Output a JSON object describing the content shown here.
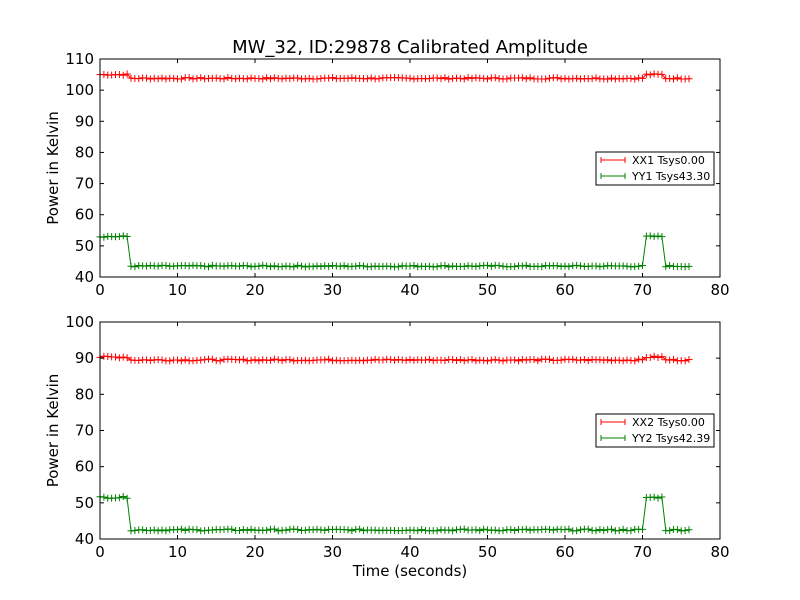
{
  "figure": {
    "title": "MW_32, ID:29878 Calibrated Amplitude"
  },
  "chart_data": [
    {
      "type": "line",
      "title": "MW_32, ID:29878 Calibrated Amplitude",
      "xlabel": "",
      "ylabel": "Power in Kelvin",
      "xlim": [
        0,
        80
      ],
      "ylim": [
        40,
        110
      ],
      "xticks": [
        "0",
        "10",
        "20",
        "30",
        "40",
        "50",
        "60",
        "70",
        "80"
      ],
      "yticks": [
        "40",
        "50",
        "60",
        "70",
        "80",
        "90",
        "100",
        "110"
      ],
      "grid": false,
      "legend_position": "center-right",
      "series": [
        {
          "name": "XX1 Tsys0.00",
          "color": "#ff0000",
          "marker": "plus",
          "x": [
            0,
            3.5,
            4,
            70,
            70.5,
            72.5,
            73,
            76
          ],
          "y": [
            105,
            105,
            103.8,
            103.8,
            105,
            105,
            103.8,
            103.8
          ]
        },
        {
          "name": "YY1 Tsys43.30",
          "color": "#008000",
          "marker": "plus",
          "x": [
            0,
            3.5,
            4,
            70,
            70.5,
            72.5,
            73,
            76
          ],
          "y": [
            53,
            53,
            43.5,
            43.5,
            53,
            53,
            43.5,
            43.5
          ]
        }
      ]
    },
    {
      "type": "line",
      "title": "",
      "xlabel": "Time (seconds)",
      "ylabel": "Power in Kelvin",
      "xlim": [
        0,
        80
      ],
      "ylim": [
        40,
        100
      ],
      "xticks": [
        "0",
        "10",
        "20",
        "30",
        "40",
        "50",
        "60",
        "70",
        "80"
      ],
      "yticks": [
        "40",
        "50",
        "60",
        "70",
        "80",
        "90",
        "100"
      ],
      "grid": false,
      "legend_position": "center-right",
      "series": [
        {
          "name": "XX2 Tsys0.00",
          "color": "#ff0000",
          "marker": "plus",
          "x": [
            0,
            3.5,
            4,
            70,
            70.5,
            72.5,
            73,
            76
          ],
          "y": [
            90.3,
            90.3,
            89.5,
            89.5,
            90.3,
            90.3,
            89.5,
            89.5
          ]
        },
        {
          "name": "YY2 Tsys42.39",
          "color": "#008000",
          "marker": "plus",
          "x": [
            0,
            3.5,
            4,
            70,
            70.5,
            72.5,
            73,
            76
          ],
          "y": [
            51.5,
            51.5,
            42.5,
            42.5,
            51.5,
            51.5,
            42.5,
            42.5
          ]
        }
      ]
    }
  ]
}
